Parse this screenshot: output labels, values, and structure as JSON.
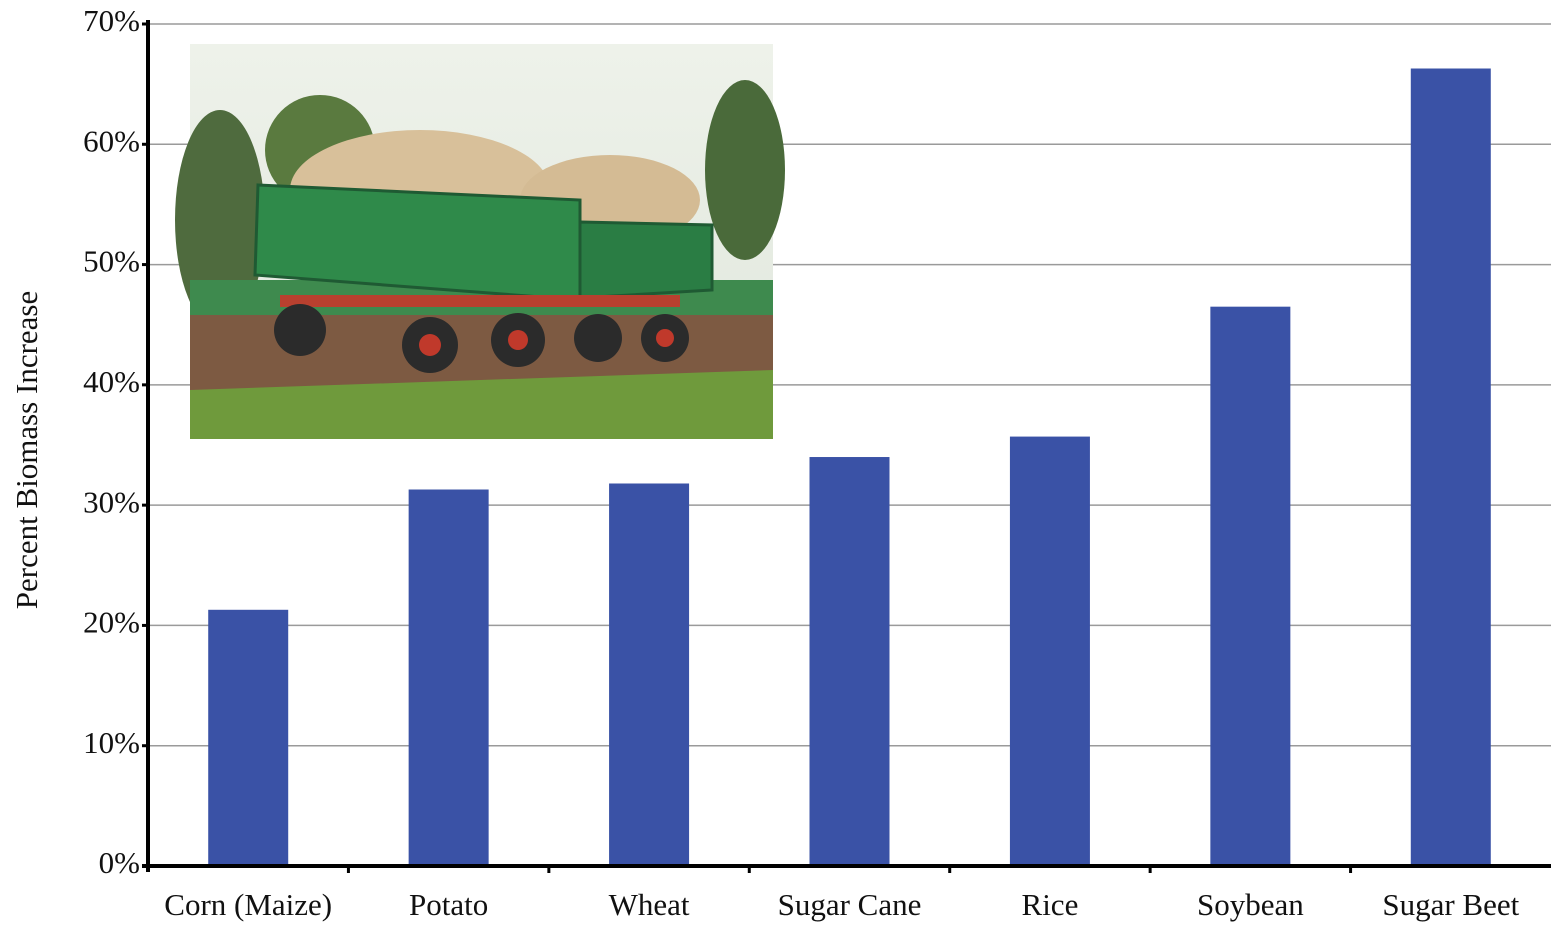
{
  "chart_data": {
    "type": "bar",
    "y_label": "Percent Biomass Increase",
    "categories": [
      "Corn (Maize)",
      "Potato",
      "Wheat",
      "Sugar Cane",
      "Rice",
      "Soybean",
      "Sugar Beet"
    ],
    "values": [
      21.3,
      31.3,
      31.8,
      34.0,
      35.7,
      46.5,
      66.3
    ],
    "color": "#3a52a6",
    "ylim": [
      0,
      70
    ],
    "yticks": [
      {
        "value": 0,
        "label": "0%"
      },
      {
        "value": 10,
        "label": "10%"
      },
      {
        "value": 20,
        "label": "20%"
      },
      {
        "value": 30,
        "label": "30%"
      },
      {
        "value": 40,
        "label": "40%"
      },
      {
        "value": 50,
        "label": "50%"
      },
      {
        "value": 60,
        "label": "60%"
      },
      {
        "value": 70,
        "label": "70%"
      }
    ],
    "grid": true
  }
}
